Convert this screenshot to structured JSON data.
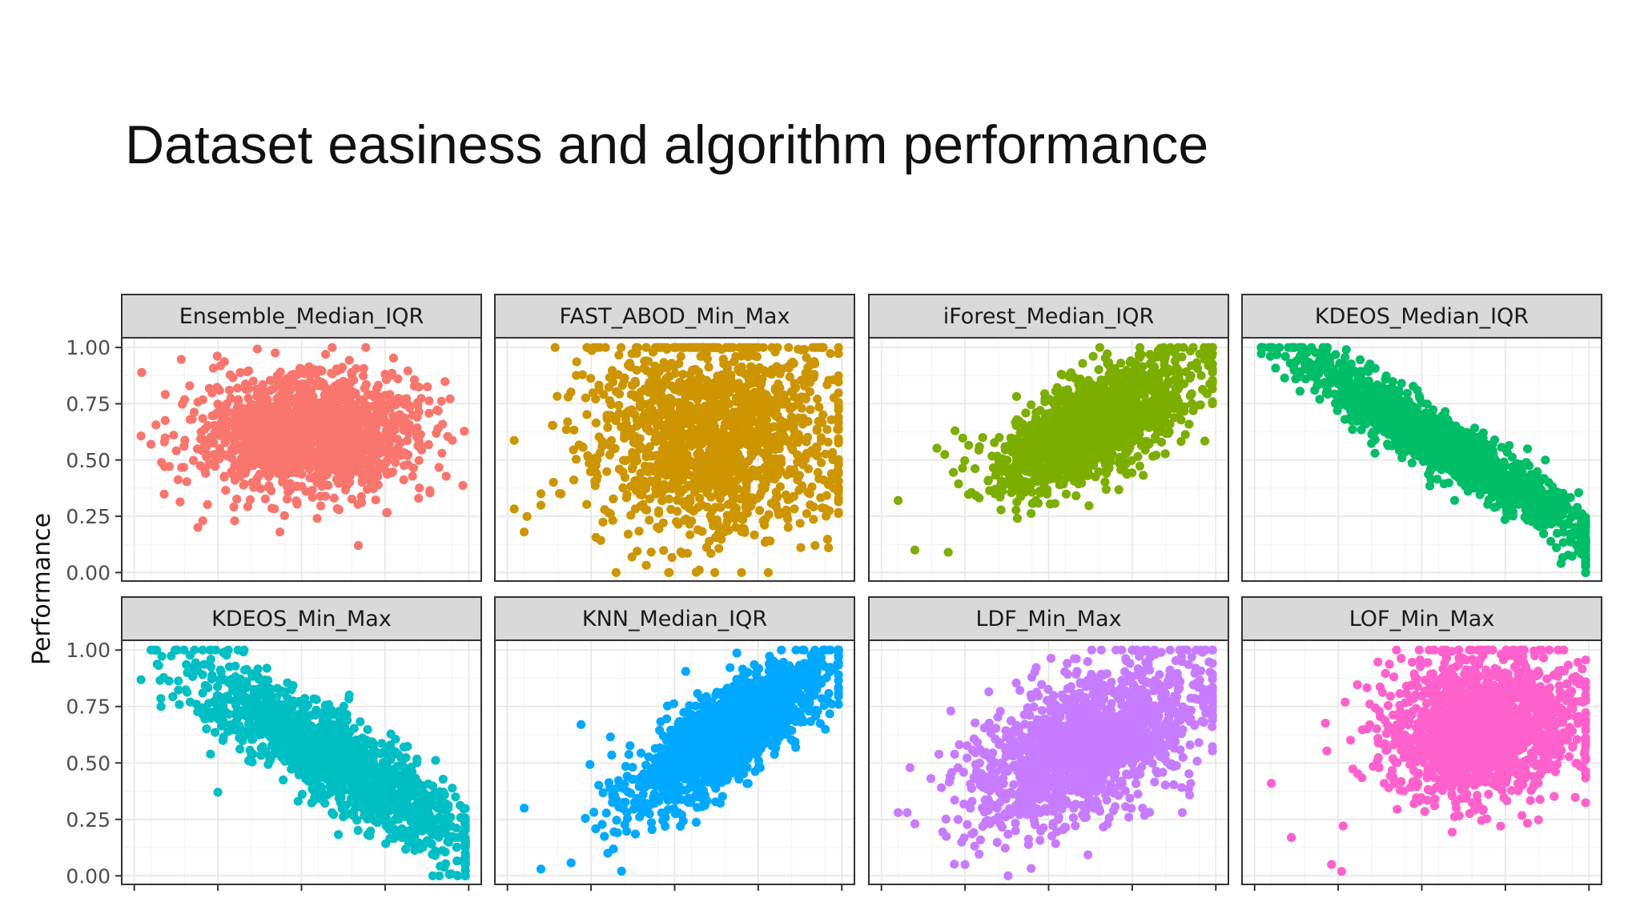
{
  "slide": {
    "title": "Dataset easiness and algorithm performance"
  },
  "chart_data": {
    "type": "scatter",
    "layout": "facet-grid-2x4",
    "ylabel": "Performance",
    "xlabel": "",
    "ylim": [
      0,
      1
    ],
    "y_ticks": [
      "1.00",
      "0.75",
      "0.50",
      "0.25",
      "0.00"
    ],
    "x_ticks_labeled": false,
    "grid": true,
    "panels": [
      {
        "name": "Ensemble_Median_IQR",
        "color": "#F8766D",
        "shape": "blob",
        "x_center": 0.52,
        "y_center": 0.62,
        "x_spread": 0.17,
        "y_spread": 0.13,
        "correlation": 0.0,
        "outliers": [
          [
            0.05,
            0.57
          ],
          [
            0.09,
            0.58
          ],
          [
            0.19,
            0.2
          ],
          [
            0.3,
            0.23
          ],
          [
            0.67,
            0.12
          ],
          [
            0.92,
            0.53
          ]
        ]
      },
      {
        "name": "FAST_ABOD_Min_Max",
        "color": "#CD9600",
        "shape": "blob",
        "x_center": 0.62,
        "y_center": 0.62,
        "x_spread": 0.2,
        "y_spread": 0.22,
        "correlation": 0.0,
        "outliers": [
          [
            0.05,
            0.18
          ],
          [
            0.1,
            0.35
          ],
          [
            0.62,
            0.0
          ],
          [
            0.7,
            0.0
          ],
          [
            0.78,
            0.0
          ],
          [
            0.92,
            0.12
          ],
          [
            0.96,
            0.11
          ]
        ]
      },
      {
        "name": "iForest_Median_IQR",
        "color": "#7CAE00",
        "shape": "blob",
        "x_center": 0.64,
        "y_center": 0.66,
        "x_spread": 0.15,
        "y_spread": 0.14,
        "correlation": 0.6,
        "outliers": [
          [
            0.05,
            0.32
          ],
          [
            0.1,
            0.1
          ],
          [
            0.2,
            0.09
          ],
          [
            0.22,
            0.63
          ],
          [
            0.97,
            0.95
          ]
        ]
      },
      {
        "name": "KDEOS_Median_IQR",
        "color": "#00BE67",
        "shape": "band",
        "x_center": 0.58,
        "y_center": 0.55,
        "x_spread": 0.22,
        "y_spread": 0.21,
        "correlation": -0.95,
        "outliers": [
          [
            0.05,
            1.0
          ],
          [
            0.11,
            1.0
          ],
          [
            0.27,
            0.68
          ],
          [
            0.36,
            0.53
          ],
          [
            0.97,
            0.17
          ]
        ]
      },
      {
        "name": "KDEOS_Min_Max",
        "color": "#00BFC4",
        "shape": "band",
        "x_center": 0.6,
        "y_center": 0.52,
        "x_spread": 0.2,
        "y_spread": 0.2,
        "correlation": -0.85,
        "outliers": [
          [
            0.05,
            1.0
          ],
          [
            0.08,
            0.75
          ],
          [
            0.25,
            0.37
          ],
          [
            0.9,
            0.09
          ],
          [
            0.96,
            0.17
          ]
        ]
      },
      {
        "name": "KNN_Median_IQR",
        "color": "#00A9FF",
        "shape": "blob",
        "x_center": 0.67,
        "y_center": 0.64,
        "x_spread": 0.16,
        "y_spread": 0.17,
        "correlation": 0.8,
        "outliers": [
          [
            0.05,
            0.3
          ],
          [
            0.1,
            0.03
          ],
          [
            0.22,
            0.67
          ],
          [
            0.3,
            0.1
          ],
          [
            0.97,
            0.92
          ]
        ]
      },
      {
        "name": "LDF_Min_Max",
        "color": "#C77CFF",
        "shape": "blob",
        "x_center": 0.62,
        "y_center": 0.58,
        "x_spread": 0.18,
        "y_spread": 0.18,
        "correlation": 0.5,
        "outliers": [
          [
            0.05,
            0.28
          ],
          [
            0.1,
            0.23
          ],
          [
            0.25,
            0.05
          ],
          [
            0.45,
            0.88
          ],
          [
            0.9,
            0.28
          ],
          [
            0.97,
            0.72
          ]
        ]
      },
      {
        "name": "LOF_Min_Max",
        "color": "#FF61CC",
        "shape": "blob",
        "x_center": 0.68,
        "y_center": 0.66,
        "x_spread": 0.16,
        "y_spread": 0.17,
        "correlation": 0.1,
        "outliers": [
          [
            0.05,
            0.41
          ],
          [
            0.11,
            0.17
          ],
          [
            0.23,
            0.05
          ],
          [
            0.26,
            0.02
          ],
          [
            0.97,
            0.68
          ]
        ]
      }
    ]
  }
}
